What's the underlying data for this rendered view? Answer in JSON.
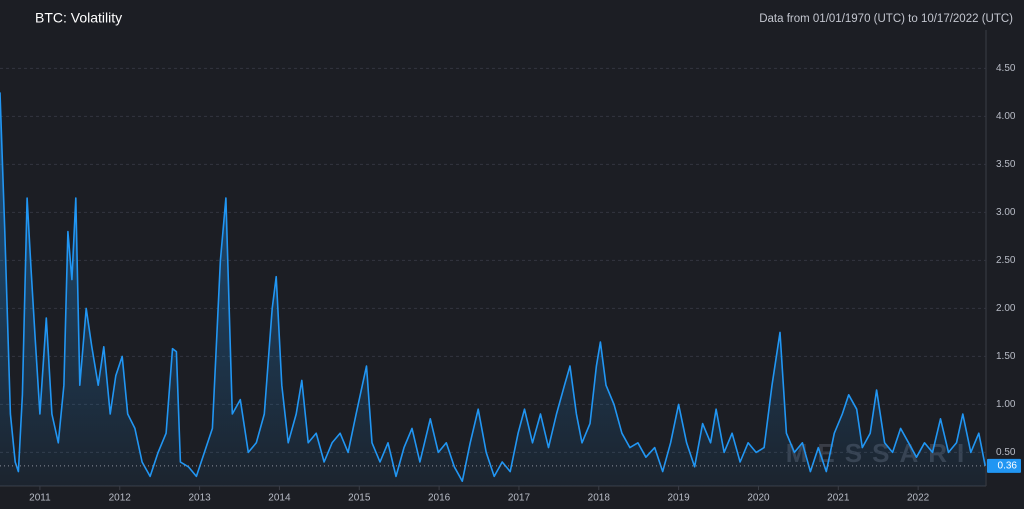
{
  "chart_data": {
    "type": "line",
    "title": "BTC: Volatility",
    "subtitle": "Data from 01/01/1970 (UTC) to 10/17/2022 (UTC)",
    "watermark": "MESSARI",
    "color": "#2196f3",
    "last_value": 0.36,
    "xlim": [
      2010.5,
      2022.85
    ],
    "xticks": [
      2011,
      2012,
      2013,
      2014,
      2015,
      2016,
      2017,
      2018,
      2019,
      2020,
      2021,
      2022
    ],
    "ylim": [
      0.15,
      4.9
    ],
    "yticks": [
      {
        "value": 0.5,
        "label": "0.50"
      },
      {
        "value": 1,
        "label": "1.00"
      },
      {
        "value": 1.5,
        "label": "1.50"
      },
      {
        "value": 2,
        "label": "2.00"
      },
      {
        "value": 2.5,
        "label": "2.50"
      },
      {
        "value": 3,
        "label": "3.00"
      },
      {
        "value": 3.5,
        "label": "3.50"
      },
      {
        "value": 4,
        "label": "4.00"
      },
      {
        "value": 4.5,
        "label": "4.50"
      }
    ],
    "grid": true,
    "x": [
      2010.5,
      2010.56,
      2010.63,
      2010.69,
      2010.73,
      2010.78,
      2010.84,
      2010.89,
      2010.94,
      2011.0,
      2011.08,
      2011.15,
      2011.23,
      2011.3,
      2011.35,
      2011.4,
      2011.45,
      2011.5,
      2011.58,
      2011.65,
      2011.73,
      2011.8,
      2011.88,
      2011.95,
      2012.03,
      2012.1,
      2012.19,
      2012.28,
      2012.38,
      2012.48,
      2012.58,
      2012.66,
      2012.71,
      2012.76,
      2012.86,
      2012.96,
      2013.06,
      2013.16,
      2013.26,
      2013.33,
      2013.41,
      2013.51,
      2013.61,
      2013.71,
      2013.81,
      2013.91,
      2013.96,
      2014.03,
      2014.11,
      2014.21,
      2014.28,
      2014.36,
      2014.46,
      2014.56,
      2014.66,
      2014.76,
      2014.86,
      2014.96,
      2015.09,
      2015.16,
      2015.26,
      2015.36,
      2015.46,
      2015.56,
      2015.66,
      2015.76,
      2015.89,
      2015.99,
      2016.09,
      2016.19,
      2016.29,
      2016.39,
      2016.49,
      2016.59,
      2016.69,
      2016.79,
      2016.89,
      2016.99,
      2017.07,
      2017.17,
      2017.27,
      2017.37,
      2017.47,
      2017.57,
      2017.64,
      2017.72,
      2017.79,
      2017.89,
      2017.97,
      2018.02,
      2018.09,
      2018.19,
      2018.29,
      2018.39,
      2018.49,
      2018.59,
      2018.7,
      2018.8,
      2018.9,
      2019.0,
      2019.1,
      2019.2,
      2019.3,
      2019.4,
      2019.47,
      2019.57,
      2019.67,
      2019.77,
      2019.87,
      2019.97,
      2020.07,
      2020.17,
      2020.27,
      2020.35,
      2020.45,
      2020.55,
      2020.65,
      2020.75,
      2020.85,
      2020.95,
      2021.05,
      2021.13,
      2021.23,
      2021.3,
      2021.4,
      2021.48,
      2021.58,
      2021.68,
      2021.78,
      2021.88,
      2021.98,
      2022.08,
      2022.18,
      2022.28,
      2022.38,
      2022.48,
      2022.56,
      2022.66,
      2022.76,
      2022.84
    ],
    "values": [
      4.25,
      2.8,
      0.9,
      0.4,
      0.3,
      1.1,
      3.15,
      2.4,
      1.7,
      0.9,
      1.9,
      0.9,
      0.6,
      1.2,
      2.8,
      2.3,
      3.15,
      1.2,
      2.0,
      1.6,
      1.2,
      1.6,
      0.9,
      1.3,
      1.5,
      0.9,
      0.75,
      0.4,
      0.25,
      0.5,
      0.7,
      1.58,
      1.55,
      0.4,
      0.35,
      0.25,
      0.5,
      0.75,
      2.5,
      3.15,
      0.9,
      1.05,
      0.5,
      0.6,
      0.9,
      2.0,
      2.33,
      1.2,
      0.6,
      0.9,
      1.25,
      0.6,
      0.7,
      0.4,
      0.6,
      0.7,
      0.5,
      0.9,
      1.4,
      0.6,
      0.4,
      0.6,
      0.25,
      0.55,
      0.75,
      0.4,
      0.85,
      0.5,
      0.6,
      0.35,
      0.2,
      0.6,
      0.95,
      0.5,
      0.25,
      0.4,
      0.3,
      0.7,
      0.95,
      0.6,
      0.9,
      0.55,
      0.9,
      1.2,
      1.4,
      0.9,
      0.6,
      0.8,
      1.4,
      1.65,
      1.2,
      1.0,
      0.7,
      0.55,
      0.6,
      0.45,
      0.55,
      0.3,
      0.6,
      1.0,
      0.6,
      0.35,
      0.8,
      0.6,
      0.95,
      0.5,
      0.7,
      0.4,
      0.6,
      0.5,
      0.55,
      1.2,
      1.75,
      0.7,
      0.5,
      0.6,
      0.3,
      0.55,
      0.3,
      0.7,
      0.9,
      1.1,
      0.95,
      0.55,
      0.7,
      1.15,
      0.6,
      0.5,
      0.75,
      0.6,
      0.45,
      0.6,
      0.5,
      0.85,
      0.5,
      0.6,
      0.9,
      0.5,
      0.7,
      0.36
    ]
  }
}
